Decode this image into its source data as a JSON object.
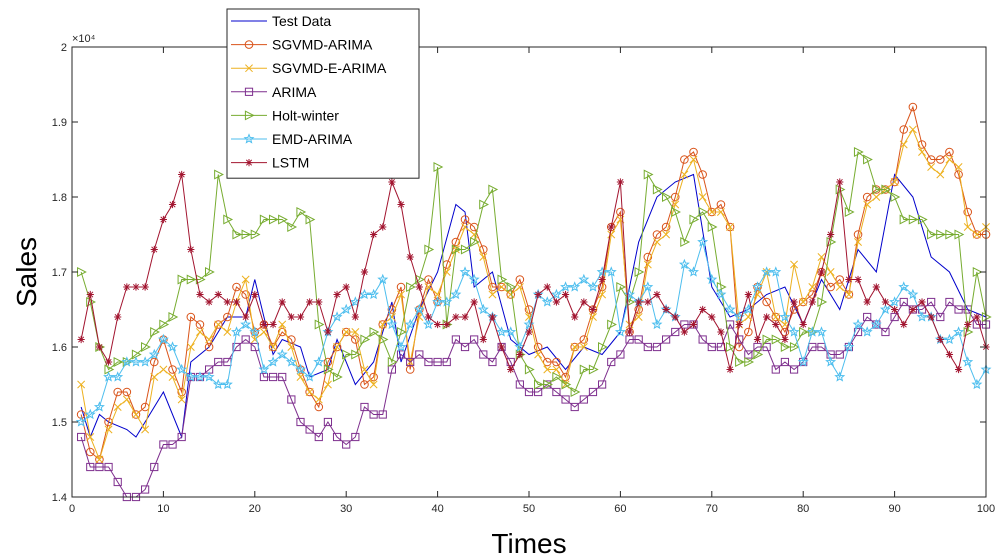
{
  "chart_data": {
    "type": "line",
    "xlabel": "Times",
    "ylabel": "Sales",
    "xlim": [
      0,
      100
    ],
    "ylim": [
      14000,
      20000
    ],
    "xticks": [
      "0",
      "10",
      "20",
      "30",
      "40",
      "50",
      "60",
      "70",
      "80",
      "90",
      "100"
    ],
    "yticks": [
      "1.4",
      "1.5",
      "1.6",
      "1.7",
      "1.8",
      "1.9",
      "2"
    ],
    "y_exponent_label": "×10⁴",
    "grid": false,
    "legend_position": "top-left",
    "series": [
      {
        "name": "Test Data",
        "color": "#0000cc",
        "marker": "none",
        "x": [
          1,
          2,
          3,
          4,
          6,
          7,
          10,
          12,
          13,
          15,
          17,
          19,
          20,
          22,
          23,
          25,
          26,
          28,
          29,
          31,
          33,
          35,
          36,
          38,
          40,
          42,
          43,
          44,
          46,
          48,
          50,
          52,
          54,
          56,
          58,
          60,
          62,
          64,
          66,
          68,
          70,
          72,
          74,
          76,
          78,
          80,
          82,
          84,
          86,
          88,
          90,
          92,
          94,
          96,
          98,
          100
        ],
        "y": [
          15200,
          14800,
          15100,
          15000,
          14900,
          14800,
          15400,
          14800,
          15800,
          16000,
          16400,
          16400,
          16900,
          15900,
          16100,
          16000,
          15600,
          15700,
          16100,
          15500,
          15800,
          16600,
          15800,
          16500,
          17000,
          17900,
          17800,
          16800,
          17000,
          16100,
          15900,
          16000,
          15700,
          16000,
          15900,
          16200,
          17400,
          18000,
          18200,
          18300,
          16800,
          16400,
          16500,
          16700,
          16800,
          16300,
          16900,
          16500,
          17300,
          17000,
          18300,
          18000,
          17200,
          17000,
          16500,
          16400
        ]
      },
      {
        "name": "SGVMD-ARIMA",
        "color": "#d95319",
        "marker": "circle",
        "y": [
          15100,
          14600,
          14500,
          15000,
          15400,
          15400,
          15100,
          15200,
          15800,
          16100,
          15700,
          15400,
          16400,
          16300,
          16000,
          16300,
          16400,
          16800,
          16700,
          16200,
          16300,
          16000,
          16200,
          16100,
          15700,
          15400,
          15200,
          15800,
          16000,
          16200,
          16100,
          15500,
          15600,
          16300,
          16500,
          16800,
          15700,
          16500,
          16900,
          16600,
          17100,
          17400,
          17700,
          17600,
          17300,
          16800,
          16800,
          16700,
          16900,
          16500,
          16000,
          15800,
          15800,
          15600,
          16000,
          16100,
          16500,
          16800,
          17600,
          17800,
          16200,
          16500,
          17200,
          17500,
          17600,
          18000,
          18500,
          18600,
          18300,
          17800,
          17900,
          17600,
          16000,
          16200,
          16800,
          16600,
          16400,
          16200,
          16500,
          16600,
          16700,
          17000,
          16800,
          16900,
          16700,
          17500,
          18000,
          18100,
          18100,
          18200,
          18900,
          19200,
          18700,
          18500,
          18500,
          18600,
          18300,
          17800,
          17500,
          17500
        ]
      },
      {
        "name": "SGVMD-E-ARIMA",
        "color": "#edb120",
        "marker": "x",
        "y": [
          15500,
          14800,
          14500,
          14900,
          15200,
          15300,
          15100,
          14900,
          15600,
          15700,
          15600,
          15300,
          16000,
          16200,
          16100,
          16300,
          16200,
          16600,
          16900,
          16100,
          16200,
          16000,
          16300,
          16000,
          15600,
          15400,
          15300,
          15500,
          16000,
          16200,
          16200,
          15700,
          15500,
          16300,
          16400,
          16700,
          15800,
          16400,
          16800,
          16700,
          17000,
          17300,
          17600,
          17500,
          17200,
          16700,
          16800,
          16700,
          16800,
          16400,
          15900,
          15700,
          15700,
          15500,
          16000,
          16000,
          16400,
          16700,
          17500,
          17700,
          16300,
          16400,
          17100,
          17400,
          17500,
          17900,
          18300,
          18500,
          18000,
          17800,
          17800,
          17600,
          16300,
          16400,
          16700,
          17000,
          16400,
          16300,
          17100,
          16600,
          16800,
          17200,
          17000,
          16800,
          16700,
          17400,
          17900,
          18000,
          18100,
          18200,
          18700,
          18900,
          18600,
          18400,
          18300,
          18500,
          18400,
          17600,
          17500,
          17600
        ]
      },
      {
        "name": "ARIMA",
        "color": "#7e2f8e",
        "marker": "square",
        "y": [
          14800,
          14400,
          14400,
          14400,
          14200,
          14000,
          14000,
          14100,
          14400,
          14700,
          14700,
          14800,
          15600,
          15600,
          15700,
          15800,
          15800,
          16000,
          16100,
          16000,
          15600,
          15600,
          15600,
          15300,
          15000,
          14900,
          14800,
          15000,
          14800,
          14700,
          14800,
          15200,
          15100,
          15100,
          15700,
          15900,
          15800,
          15900,
          15800,
          15800,
          15800,
          16100,
          16000,
          16100,
          15900,
          15800,
          16000,
          15800,
          15500,
          15400,
          15400,
          15500,
          15400,
          15300,
          15200,
          15300,
          15400,
          15500,
          15800,
          15900,
          16100,
          16100,
          16000,
          16000,
          16100,
          16200,
          16300,
          16300,
          16100,
          16000,
          16000,
          16300,
          16100,
          15900,
          16000,
          16000,
          15700,
          15800,
          15700,
          15800,
          16000,
          16000,
          15900,
          15900,
          16000,
          16200,
          16400,
          16300,
          16200,
          16400,
          16600,
          16500,
          16500,
          16600,
          16400,
          16600,
          16500,
          16500,
          16300,
          16300
        ]
      },
      {
        "name": "Holt-winter",
        "color": "#77ac30",
        "marker": "triangle-right",
        "y": [
          17000,
          16600,
          16000,
          15700,
          15800,
          15800,
          15900,
          16000,
          16200,
          16300,
          16400,
          16900,
          16900,
          16900,
          17000,
          18300,
          17700,
          17500,
          17500,
          17500,
          17700,
          17700,
          17700,
          17600,
          17800,
          17700,
          16300,
          15700,
          15600,
          15900,
          15900,
          16100,
          16200,
          16100,
          15800,
          16200,
          16800,
          16900,
          17300,
          18400,
          16300,
          17300,
          17300,
          17400,
          17900,
          18100,
          16900,
          16800,
          15900,
          15700,
          15500,
          15500,
          15600,
          15500,
          15400,
          15700,
          15700,
          16000,
          16300,
          16800,
          16600,
          17000,
          18300,
          18100,
          18000,
          17800,
          17400,
          17700,
          17800,
          17600,
          16800,
          16000,
          15800,
          15800,
          15900,
          16100,
          16100,
          16000,
          16000,
          16200,
          16200,
          16600,
          17400,
          18100,
          17800,
          18600,
          18500,
          18100,
          18100,
          18000,
          17700,
          17700,
          17700,
          17500,
          17500,
          17500,
          17500,
          16200,
          17000,
          16400
        ]
      },
      {
        "name": "EMD-ARIMA",
        "color": "#4dbeee",
        "marker": "star",
        "y": [
          15000,
          15100,
          15200,
          15600,
          15600,
          15800,
          15800,
          15800,
          15900,
          16100,
          16000,
          15700,
          15600,
          15600,
          15600,
          15500,
          15500,
          16200,
          16300,
          16200,
          15700,
          15800,
          15900,
          15800,
          15700,
          15600,
          15800,
          16200,
          16400,
          16500,
          16600,
          16700,
          16700,
          16900,
          16300,
          16000,
          16300,
          16500,
          16300,
          16600,
          16600,
          16700,
          17000,
          16900,
          16500,
          16400,
          16200,
          16200,
          16000,
          16300,
          16700,
          16600,
          16700,
          16800,
          16800,
          16900,
          16800,
          17000,
          17000,
          16200,
          16700,
          16600,
          16800,
          16300,
          16500,
          16400,
          17100,
          17000,
          17400,
          16900,
          16700,
          16500,
          16400,
          16500,
          16800,
          17000,
          17000,
          16400,
          16200,
          15800,
          16200,
          16200,
          15800,
          15600,
          16000,
          16300,
          16200,
          16300,
          16500,
          16600,
          16800,
          16700,
          16400,
          16400,
          16100,
          16100,
          16200,
          15800,
          15500,
          15700
        ]
      },
      {
        "name": "LSTM",
        "color": "#a2142f",
        "marker": "asterisk",
        "y": [
          16100,
          16700,
          16000,
          15800,
          16400,
          16800,
          16800,
          16800,
          17300,
          17700,
          17900,
          18300,
          17300,
          16700,
          16600,
          16700,
          16600,
          16600,
          16400,
          16700,
          16300,
          16300,
          16600,
          16400,
          16400,
          16600,
          16600,
          16200,
          16700,
          16800,
          16400,
          17000,
          17500,
          17600,
          18200,
          17900,
          17200,
          16800,
          16400,
          16300,
          16300,
          16400,
          16400,
          16600,
          16100,
          16400,
          16000,
          15700,
          15900,
          16200,
          16700,
          16800,
          16600,
          16700,
          16400,
          16600,
          16500,
          16900,
          17600,
          18200,
          16200,
          16600,
          16600,
          16700,
          16500,
          16400,
          16200,
          16300,
          16500,
          16400,
          16200,
          15700,
          16300,
          16700,
          16100,
          16400,
          16300,
          16100,
          16600,
          16300,
          16600,
          17000,
          17500,
          18200,
          16900,
          16900,
          16600,
          16800,
          16600,
          16500,
          16300,
          16500,
          16600,
          16400,
          16100,
          15900,
          15700,
          16300,
          16400,
          16000
        ]
      }
    ]
  }
}
